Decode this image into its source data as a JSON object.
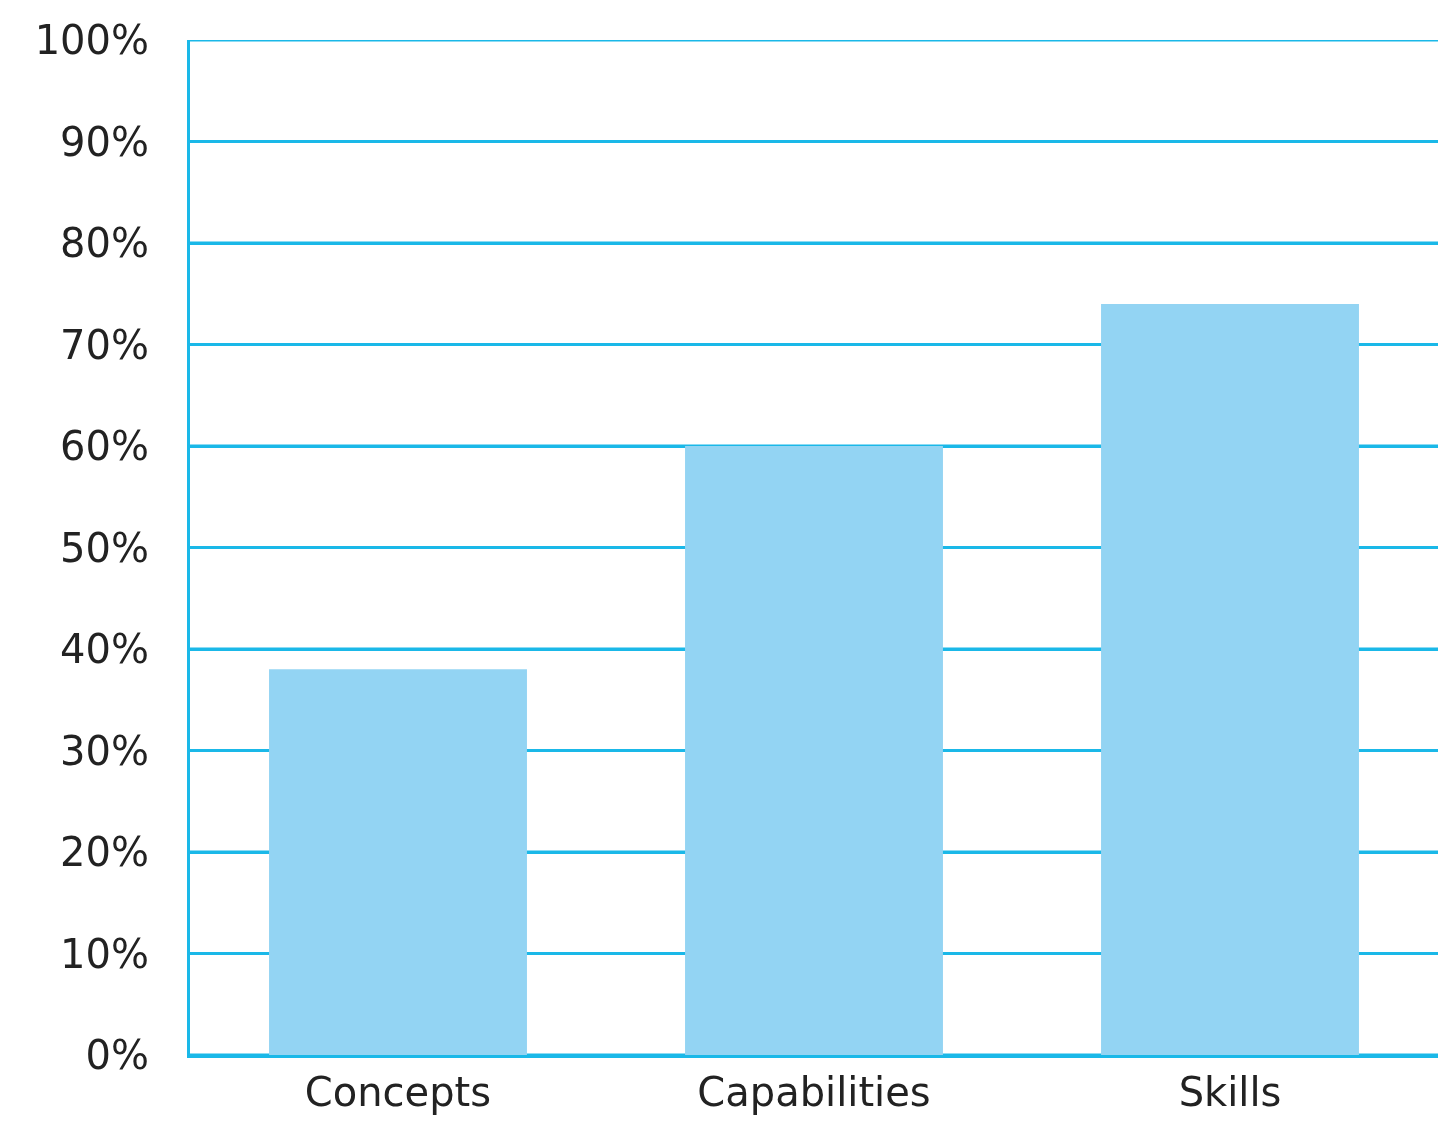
{
  "chart_data": {
    "type": "bar",
    "categories": [
      "Concepts",
      "Capabilities",
      "Skills"
    ],
    "values": [
      38,
      60,
      74
    ],
    "color": "#93d4f3",
    "ylim": [
      0,
      100
    ],
    "yticks": [
      {
        "value": 0,
        "label": "0%"
      },
      {
        "value": 10,
        "label": "10%"
      },
      {
        "value": 20,
        "label": "20%"
      },
      {
        "value": 30,
        "label": "30%"
      },
      {
        "value": 40,
        "label": "40%"
      },
      {
        "value": 50,
        "label": "50%"
      },
      {
        "value": 60,
        "label": "60%"
      },
      {
        "value": 70,
        "label": "70%"
      },
      {
        "value": 80,
        "label": "80%"
      },
      {
        "value": 90,
        "label": "90%"
      },
      {
        "value": 100,
        "label": "100%"
      }
    ],
    "grid": "y"
  }
}
